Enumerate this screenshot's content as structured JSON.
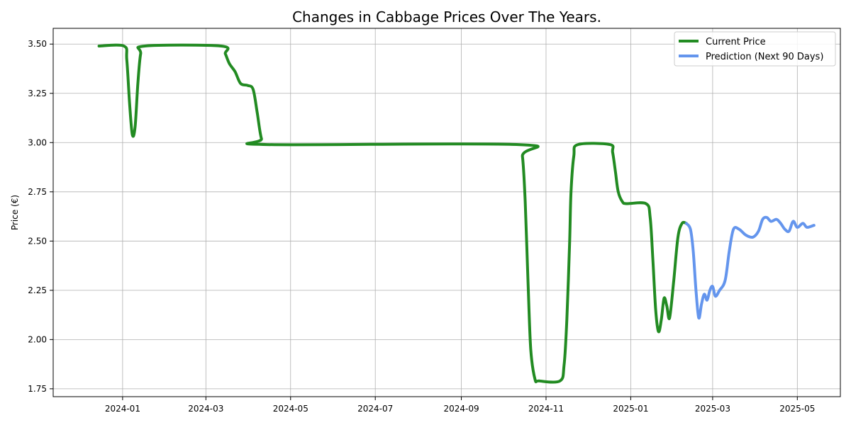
{
  "chart_data": {
    "type": "line",
    "title": "Changes in Cabbage Prices Over The Years.",
    "xlabel": "",
    "ylabel": "Price (€)",
    "xlim": [
      "2023-11-12",
      "2025-06-01"
    ],
    "ylim": [
      1.71,
      3.58
    ],
    "grid": true,
    "legend_position": "top-right",
    "x_ticks": [
      "2024-01",
      "2024-03",
      "2024-05",
      "2024-07",
      "2024-09",
      "2024-11",
      "2025-01",
      "2025-03",
      "2025-05"
    ],
    "y_ticks": [
      "1.75",
      "2.00",
      "2.25",
      "2.50",
      "2.75",
      "3.00",
      "3.25",
      "3.50"
    ],
    "series": [
      {
        "name": "Current Price",
        "color": "#228B22",
        "points": [
          [
            "2023-12-15",
            3.49
          ],
          [
            "2024-01-02",
            3.49
          ],
          [
            "2024-01-04",
            3.42
          ],
          [
            "2024-01-06",
            3.2
          ],
          [
            "2024-01-08",
            3.04
          ],
          [
            "2024-01-10",
            3.08
          ],
          [
            "2024-01-12",
            3.3
          ],
          [
            "2024-01-14",
            3.45
          ],
          [
            "2024-01-17",
            3.49
          ],
          [
            "2024-03-12",
            3.49
          ],
          [
            "2024-03-15",
            3.45
          ],
          [
            "2024-03-18",
            3.4
          ],
          [
            "2024-03-22",
            3.36
          ],
          [
            "2024-03-26",
            3.3
          ],
          [
            "2024-03-31",
            3.29
          ],
          [
            "2024-04-04",
            3.27
          ],
          [
            "2024-04-07",
            3.15
          ],
          [
            "2024-04-10",
            3.02
          ],
          [
            "2024-04-14",
            2.99
          ],
          [
            "2024-10-12",
            2.99
          ],
          [
            "2024-10-15",
            2.93
          ],
          [
            "2024-10-17",
            2.7
          ],
          [
            "2024-10-19",
            2.3
          ],
          [
            "2024-10-21",
            1.95
          ],
          [
            "2024-10-24",
            1.8
          ],
          [
            "2024-10-27",
            1.79
          ],
          [
            "2024-11-11",
            1.79
          ],
          [
            "2024-11-14",
            1.87
          ],
          [
            "2024-11-16",
            2.1
          ],
          [
            "2024-11-18",
            2.5
          ],
          [
            "2024-11-19",
            2.75
          ],
          [
            "2024-11-21",
            2.93
          ],
          [
            "2024-11-24",
            2.99
          ],
          [
            "2024-12-17",
            2.99
          ],
          [
            "2024-12-19",
            2.95
          ],
          [
            "2024-12-21",
            2.85
          ],
          [
            "2024-12-23",
            2.75
          ],
          [
            "2024-12-26",
            2.7
          ],
          [
            "2024-12-29",
            2.69
          ],
          [
            "2025-01-12",
            2.69
          ],
          [
            "2025-01-15",
            2.62
          ],
          [
            "2025-01-17",
            2.4
          ],
          [
            "2025-01-19",
            2.15
          ],
          [
            "2025-01-21",
            2.04
          ],
          [
            "2025-01-23",
            2.1
          ],
          [
            "2025-01-25",
            2.21
          ],
          [
            "2025-01-27",
            2.17
          ],
          [
            "2025-01-29",
            2.11
          ],
          [
            "2025-02-01",
            2.3
          ],
          [
            "2025-02-04",
            2.52
          ],
          [
            "2025-02-07",
            2.59
          ],
          [
            "2025-02-10",
            2.59
          ]
        ]
      },
      {
        "name": "Prediction (Next 90 Days)",
        "color": "#6495ED",
        "points": [
          [
            "2025-02-10",
            2.59
          ],
          [
            "2025-02-13",
            2.56
          ],
          [
            "2025-02-15",
            2.45
          ],
          [
            "2025-02-17",
            2.25
          ],
          [
            "2025-02-19",
            2.11
          ],
          [
            "2025-02-21",
            2.18
          ],
          [
            "2025-02-23",
            2.23
          ],
          [
            "2025-02-25",
            2.2
          ],
          [
            "2025-02-27",
            2.25
          ],
          [
            "2025-03-01",
            2.27
          ],
          [
            "2025-03-03",
            2.22
          ],
          [
            "2025-03-06",
            2.25
          ],
          [
            "2025-03-10",
            2.3
          ],
          [
            "2025-03-13",
            2.45
          ],
          [
            "2025-03-16",
            2.56
          ],
          [
            "2025-03-20",
            2.56
          ],
          [
            "2025-03-25",
            2.53
          ],
          [
            "2025-03-30",
            2.52
          ],
          [
            "2025-04-03",
            2.55
          ],
          [
            "2025-04-06",
            2.61
          ],
          [
            "2025-04-09",
            2.62
          ],
          [
            "2025-04-12",
            2.6
          ],
          [
            "2025-04-16",
            2.61
          ],
          [
            "2025-04-19",
            2.59
          ],
          [
            "2025-04-22",
            2.56
          ],
          [
            "2025-04-25",
            2.55
          ],
          [
            "2025-04-28",
            2.6
          ],
          [
            "2025-05-01",
            2.57
          ],
          [
            "2025-05-05",
            2.59
          ],
          [
            "2025-05-08",
            2.57
          ],
          [
            "2025-05-13",
            2.58
          ]
        ]
      }
    ]
  }
}
